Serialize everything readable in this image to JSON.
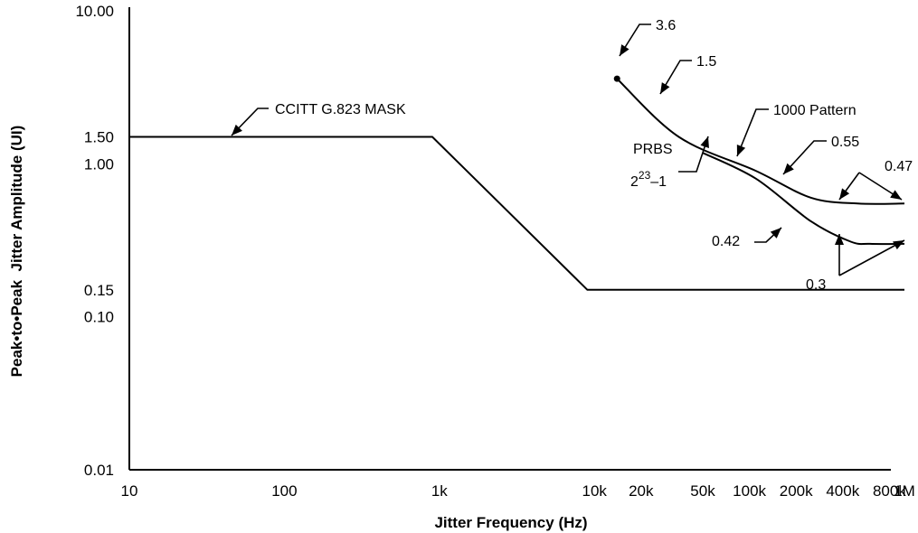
{
  "chart_data": {
    "type": "line",
    "xlabel": "Jitter Frequency (Hz)",
    "ylabel": "Peak•to•Peak  Jitter Amplitude (UI)",
    "x_scale": "log",
    "y_scale": "log",
    "xlim": [
      10,
      1000000
    ],
    "ylim": [
      0.01,
      10
    ],
    "x_ticks": [
      {
        "label": "10",
        "value": 10
      },
      {
        "label": "100",
        "value": 100
      },
      {
        "label": "1k",
        "value": 1000
      },
      {
        "label": "10k",
        "value": 10000
      },
      {
        "label": "20k",
        "value": 20000
      },
      {
        "label": "50k",
        "value": 50000
      },
      {
        "label": "100k",
        "value": 100000
      },
      {
        "label": "200k",
        "value": 200000
      },
      {
        "label": "400k",
        "value": 400000
      },
      {
        "label": "800k",
        "value": 800000
      },
      {
        "label": "1M",
        "value": 1000000
      }
    ],
    "y_ticks": [
      {
        "label": "10.00",
        "value": 10
      },
      {
        "label": "1.50",
        "value": 1.5
      },
      {
        "label": "1.00",
        "value": 1.0
      },
      {
        "label": "0.15",
        "value": 0.15
      },
      {
        "label": "0.10",
        "value": 0.1
      },
      {
        "label": "0.01",
        "value": 0.01
      }
    ],
    "series": [
      {
        "name": "CCITT G.823 MASK",
        "points": [
          [
            10,
            1.5
          ],
          [
            900,
            1.5
          ],
          [
            9000,
            0.15
          ],
          [
            1000000,
            0.15
          ]
        ]
      },
      {
        "name": "1000 Pattern",
        "points": [
          [
            14000,
            3.6
          ],
          [
            35000,
            1.5
          ],
          [
            110000,
            0.9
          ],
          [
            250000,
            0.6
          ],
          [
            500000,
            0.55
          ],
          [
            1000000,
            0.55
          ]
        ]
      },
      {
        "name": "PRBS 2^23-1",
        "points": [
          [
            50000,
            1.18
          ],
          [
            110000,
            0.8
          ],
          [
            250000,
            0.42
          ],
          [
            450000,
            0.31
          ],
          [
            600000,
            0.3
          ],
          [
            1000000,
            0.3
          ]
        ]
      }
    ],
    "annotations": {
      "mask_label": "CCITT G.823 MASK",
      "label_3_6": "3.6",
      "label_1_5": "1.5",
      "label_1000": "1000 Pattern",
      "label_0_55": "0.55",
      "label_0_47": "0.47",
      "label_prbs": "PRBS",
      "label_prbs_exp_base": "2",
      "label_prbs_exp_power": "23",
      "label_prbs_exp_tail": "–1",
      "label_0_42": "0.42",
      "label_0_3": "0.3"
    },
    "grid": false,
    "legend": "none"
  }
}
